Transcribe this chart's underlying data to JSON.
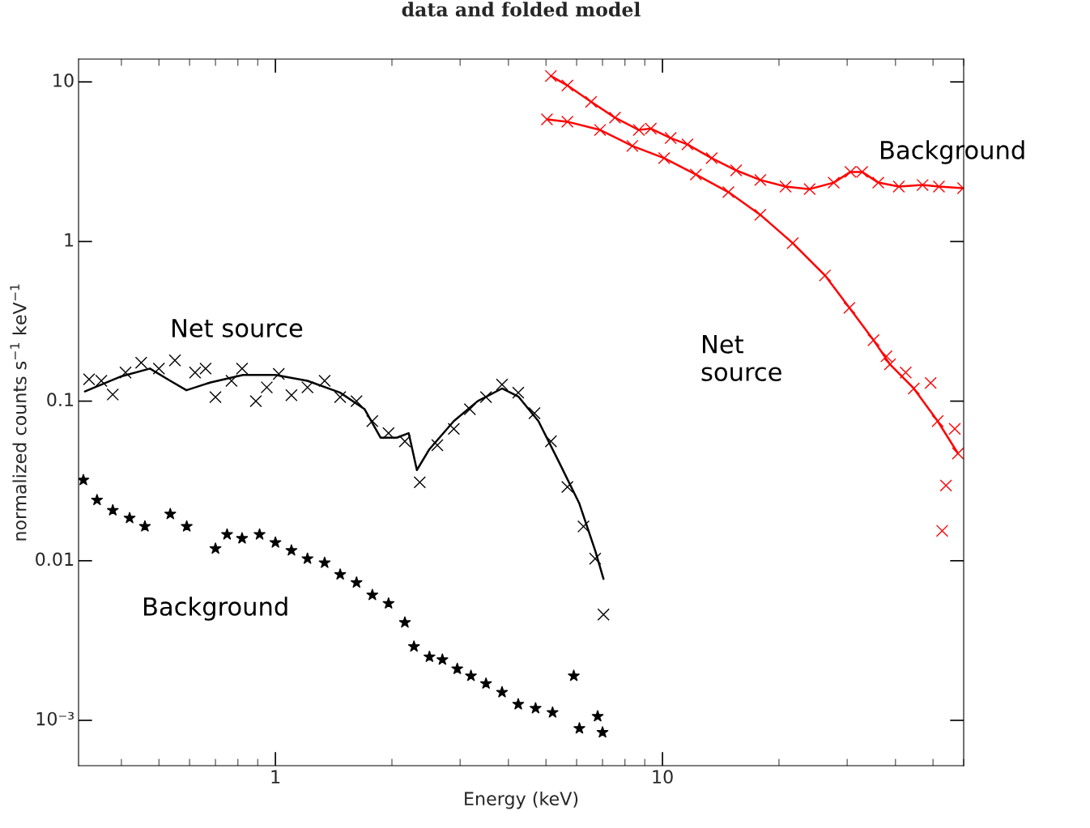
{
  "chart_data": {
    "type": "scatter",
    "title": "data and folded model",
    "xlabel": "Energy (keV)",
    "ylabel": "normalized counts s$^{−1}$ keV$^{−1}$",
    "log": "xy",
    "grid": false,
    "legend": false,
    "xlim": [
      0.31,
      60
    ],
    "ylim": [
      0.00052,
      13.9
    ],
    "xticks": [
      1,
      10
    ],
    "yticks": [
      {
        "value": 0.001,
        "label": "10⁻³"
      },
      0.01,
      0.1,
      1,
      10
    ],
    "series": [
      {
        "marker": "cross",
        "color": "#000000",
        "x": [
          0.33,
          0.355,
          0.38,
          0.41,
          0.45,
          0.5,
          0.55,
          0.62,
          0.66,
          0.7,
          0.77,
          0.82,
          0.89,
          0.95,
          1.02,
          1.1,
          1.21,
          1.34,
          1.47,
          1.62,
          1.78,
          1.96,
          2.16,
          2.36,
          2.62,
          2.89,
          3.18,
          3.5,
          3.85,
          4.24,
          4.67,
          5.15,
          5.68,
          6.25,
          6.7,
          7.04
        ],
        "values": [
          0.137,
          0.134,
          0.11,
          0.151,
          0.174,
          0.16,
          0.18,
          0.151,
          0.16,
          0.106,
          0.134,
          0.16,
          0.1,
          0.122,
          0.148,
          0.109,
          0.122,
          0.134,
          0.106,
          0.1,
          0.075,
          0.063,
          0.056,
          0.031,
          0.053,
          0.067,
          0.089,
          0.106,
          0.127,
          0.113,
          0.084,
          0.056,
          0.029,
          0.0164,
          0.0103,
          0.0046
        ]
      },
      {
        "type": "line",
        "color": "#000000",
        "x": [
          0.322,
          0.4,
          0.474,
          0.535,
          0.589,
          0.68,
          0.825,
          1.0,
          1.21,
          1.47,
          1.7,
          1.87,
          2.06,
          2.21,
          2.32,
          2.5,
          2.89,
          3.33,
          3.85,
          4.24,
          4.78,
          5.39,
          6.09,
          6.7,
          7.04
        ],
        "values": [
          0.115,
          0.143,
          0.16,
          0.134,
          0.117,
          0.131,
          0.146,
          0.146,
          0.134,
          0.113,
          0.089,
          0.059,
          0.059,
          0.063,
          0.037,
          0.05,
          0.075,
          0.1,
          0.12,
          0.107,
          0.075,
          0.042,
          0.023,
          0.0116,
          0.0077
        ]
      },
      {
        "marker": "star",
        "color": "#000000",
        "x": [
          0.319,
          0.346,
          0.38,
          0.42,
          0.46,
          0.535,
          0.59,
          0.7,
          0.75,
          0.82,
          0.91,
          1.0,
          1.1,
          1.21,
          1.34,
          1.47,
          1.62,
          1.78,
          1.96,
          2.16,
          2.28,
          2.5,
          2.7,
          2.95,
          3.2,
          3.5,
          3.85,
          4.24,
          4.7,
          5.2,
          5.9,
          6.1,
          6.8,
          7.0
        ],
        "values": [
          0.032,
          0.024,
          0.0207,
          0.0185,
          0.0164,
          0.0196,
          0.0164,
          0.0119,
          0.0146,
          0.0138,
          0.0146,
          0.013,
          0.0116,
          0.0103,
          0.0097,
          0.0082,
          0.0073,
          0.0061,
          0.0054,
          0.0041,
          0.0029,
          0.0025,
          0.0024,
          0.0021,
          0.0019,
          0.0017,
          0.0015,
          0.00126,
          0.00119,
          0.00112,
          0.0019,
          0.00089,
          0.00106,
          0.00084
        ]
      },
      {
        "marker": "cross",
        "color": "#ff0000",
        "x": [
          5.15,
          5.68,
          6.54,
          7.54,
          8.69,
          9.33,
          10.5,
          11.6,
          13.4,
          15.5,
          17.9,
          20.8,
          24.0,
          27.7,
          30.6,
          32.8,
          36.1,
          40.8,
          47.0,
          51.8,
          59.8
        ],
        "values": [
          10.9,
          9.5,
          7.5,
          5.97,
          5.0,
          5.1,
          4.45,
          4.06,
          3.33,
          2.79,
          2.43,
          2.21,
          2.13,
          2.34,
          2.73,
          2.73,
          2.34,
          2.21,
          2.26,
          2.21,
          2.16
        ]
      },
      {
        "type": "line",
        "color": "#ff0000",
        "x": [
          5.15,
          5.68,
          6.54,
          7.54,
          8.69,
          9.33,
          10.5,
          11.6,
          13.4,
          15.5,
          17.9,
          20.8,
          24.0,
          27.7,
          30.6,
          32.8,
          36.1,
          40.8,
          47.0,
          51.8,
          59.8
        ],
        "values": [
          10.9,
          9.5,
          7.5,
          5.97,
          5.0,
          5.1,
          4.45,
          4.06,
          3.33,
          2.79,
          2.43,
          2.21,
          2.13,
          2.34,
          2.73,
          2.73,
          2.34,
          2.21,
          2.26,
          2.21,
          2.16
        ]
      },
      {
        "marker": "cross",
        "color": "#ff0000",
        "x": [
          5.03,
          5.68,
          6.9,
          8.36,
          10.1,
          12.2,
          14.8,
          17.9,
          21.7,
          26.3,
          30.4,
          35.1,
          37.9,
          38.7,
          42.5,
          44.6,
          49.3,
          51.4,
          52.8,
          54.0,
          56.9,
          58.0
        ],
        "values": [
          5.82,
          5.63,
          5.0,
          3.97,
          3.33,
          2.63,
          2.04,
          1.47,
          0.977,
          0.613,
          0.384,
          0.241,
          0.191,
          0.17,
          0.151,
          0.12,
          0.13,
          0.075,
          0.0154,
          0.0296,
          0.067,
          0.047
        ]
      },
      {
        "type": "line",
        "color": "#ff0000",
        "x": [
          5.03,
          5.68,
          6.9,
          8.36,
          10.1,
          12.2,
          14.8,
          17.9,
          21.7,
          26.3,
          30.4,
          35.1,
          38.7,
          44.6,
          51.4,
          58.0
        ],
        "values": [
          5.82,
          5.63,
          5.0,
          3.97,
          3.33,
          2.63,
          2.04,
          1.47,
          0.977,
          0.613,
          0.384,
          0.241,
          0.17,
          0.12,
          0.075,
          0.047
        ]
      }
    ],
    "annotations": [
      "Net source",
      "Background",
      "Net\nsource",
      "Background"
    ]
  }
}
